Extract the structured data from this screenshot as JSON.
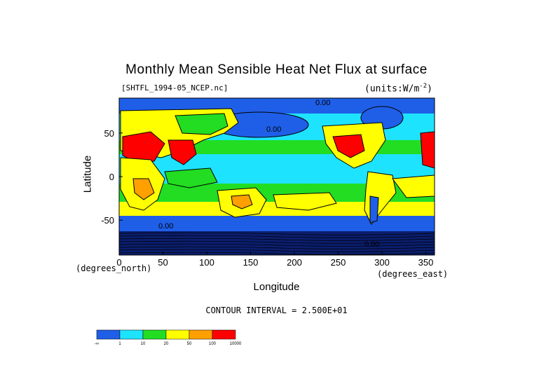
{
  "colors": {
    "blue": "#1f5fe8",
    "cyan": "#1ee3ff",
    "green": "#22dd22",
    "yellow": "#ffff00",
    "orange": "#ff9f00",
    "red": "#ff0000",
    "navy": "#0b1e6e",
    "land_outline": "#000000"
  },
  "chart_data": {
    "type": "heatmap",
    "title": "Monthly Mean Sensible Heat Net Flux at surface",
    "file_label": "[SHTFL_1994-05_NCEP.nc]",
    "units_label": "(units:W/m",
    "units_exponent": "-2",
    "units_close": ")",
    "xlabel": "Longitude",
    "ylabel": "Latitude",
    "x_unit_label": "(degrees_east)",
    "y_unit_label": "(degrees_north)",
    "xlim": [
      0,
      360
    ],
    "ylim": [
      -90,
      90
    ],
    "x_ticks": [
      0,
      50,
      100,
      150,
      200,
      250,
      300,
      350
    ],
    "y_ticks": [
      -50,
      0,
      50
    ],
    "contour_interval_text": "CONTOUR INTERVAL = 2.500E+01",
    "contour_labels": [
      "0.00",
      "0.00",
      "0.00",
      "0.00"
    ],
    "legend": {
      "bins": [
        {
          "color_key": "blue"
        },
        {
          "color_key": "cyan"
        },
        {
          "color_key": "green"
        },
        {
          "color_key": "yellow"
        },
        {
          "color_key": "orange"
        },
        {
          "color_key": "red"
        }
      ],
      "tick_labels": [
        "-∞",
        "1",
        "10",
        "20",
        "50",
        "100",
        "10000"
      ]
    }
  }
}
